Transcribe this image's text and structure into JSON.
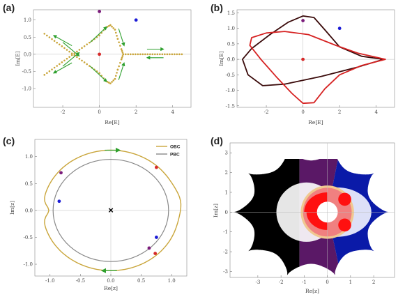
{
  "panels": [
    {
      "id": "a",
      "label": "(a)",
      "xlabel": "Re[E]",
      "ylabel": "Im[E]",
      "xlim": [
        -3.6,
        5.0
      ],
      "ylim": [
        -1.55,
        1.3
      ],
      "xticks": [
        -2,
        0,
        2,
        4
      ],
      "yticks": [
        -1.0,
        -0.5,
        0.0,
        0.5,
        1.0
      ],
      "ytick_labels": [
        "-1.0",
        "-0.5",
        "0.0",
        "0.5",
        "1.0"
      ],
      "points": [
        {
          "x": 0,
          "y": 1.25,
          "color": "#7b1c7b"
        },
        {
          "x": 2,
          "y": 1.0,
          "color": "#1c1cd6"
        },
        {
          "x": 0,
          "y": 0.0,
          "color": "#d62a2a"
        }
      ]
    },
    {
      "id": "b",
      "label": "(b)",
      "xlabel": "Re[E]",
      "ylabel": "Im[E]",
      "xlim": [
        -3.6,
        5.0
      ],
      "ylim": [
        -1.55,
        1.6
      ],
      "xticks": [
        -2,
        0,
        2,
        4
      ],
      "yticks": [
        -1.5,
        -1.0,
        -0.5,
        0.0,
        0.5,
        1.0,
        1.5
      ],
      "ytick_labels": [
        "-1.5",
        "-1.0",
        "-0.5",
        "0.0",
        "0.5",
        "1.0",
        "1.5"
      ],
      "points": [
        {
          "x": 0,
          "y": 1.25,
          "color": "#7b1c7b"
        },
        {
          "x": 2,
          "y": 1.0,
          "color": "#1c1cd6"
        },
        {
          "x": 0,
          "y": 0.0,
          "color": "#d62a2a"
        }
      ]
    },
    {
      "id": "c",
      "label": "(c)",
      "xlabel": "Re[z]",
      "ylabel": "Im[z]",
      "xlim": [
        -1.25,
        1.25
      ],
      "ylim": [
        -1.22,
        1.32
      ],
      "xticks": [
        -1.0,
        -0.5,
        0.0,
        0.5,
        1.0
      ],
      "xtick_labels": [
        "-1.0",
        "-0.5",
        "0.0",
        "0.5",
        "1.0"
      ],
      "yticks": [
        -1.0,
        -0.5,
        0.0,
        0.5,
        1.0
      ],
      "ytick_labels": [
        "-1.0",
        "-0.5",
        "0.0",
        "0.5",
        "1.0"
      ],
      "legend": [
        {
          "label": "OBC",
          "color": "#c9a53a"
        },
        {
          "label": "PBC",
          "color": "#888888"
        }
      ],
      "center_marker": "×",
      "points": [
        {
          "x": -0.82,
          "y": 0.7,
          "color": "#7b1c7b"
        },
        {
          "x": -0.85,
          "y": 0.17,
          "color": "#1c1cd6"
        },
        {
          "x": 0.75,
          "y": 0.8,
          "color": "#d62a2a"
        },
        {
          "x": 0.75,
          "y": -0.5,
          "color": "#1c1cd6"
        },
        {
          "x": 0.63,
          "y": -0.7,
          "color": "#7b1c7b"
        },
        {
          "x": 0.73,
          "y": -0.8,
          "color": "#d62a2a"
        }
      ]
    },
    {
      "id": "d",
      "label": "(d)",
      "xlabel": "Re[z]",
      "ylabel": "Im[z]",
      "xlim": [
        -4.2,
        2.9
      ],
      "ylim": [
        -3.3,
        3.5
      ],
      "xticks": [
        -3,
        -2,
        -1,
        0,
        1,
        2
      ],
      "yticks": [
        -3,
        -2,
        -1,
        0,
        1,
        2,
        3
      ],
      "region_colors": {
        "black": "#000000",
        "purple": "#5a1866",
        "blue": "#0a1aa8",
        "red": "#ff1010",
        "pink": "#f08080",
        "rim": "#f0c890"
      }
    }
  ],
  "chart_data": [
    {
      "panel": "a",
      "type": "scatter",
      "xlabel": "Re[E]",
      "ylabel": "Im[E]",
      "xlim": [
        -3.6,
        5.0
      ],
      "ylim": [
        -1.55,
        1.3
      ],
      "series": [
        {
          "name": "",
          "color": "#c9a53a",
          "description_points": [
            [
              -3.0,
              0.6
            ],
            [
              -1.5,
              0.0
            ],
            [
              -3.0,
              -0.6
            ],
            [
              0.6,
              0.8
            ],
            [
              1.0,
              0.45
            ],
            [
              1.3,
              0.0
            ],
            [
              1.0,
              -0.45
            ],
            [
              0.6,
              -0.8
            ],
            [
              4.5,
              0.0
            ]
          ]
        }
      ],
      "points": [
        {
          "x": 0,
          "y": 1.25
        },
        {
          "x": 2,
          "y": 1.0
        },
        {
          "x": 0,
          "y": 0.0
        }
      ]
    },
    {
      "panel": "b",
      "type": "line",
      "xlabel": "Re[E]",
      "ylabel": "Im[E]",
      "xlim": [
        -3.6,
        5.0
      ],
      "ylim": [
        -1.55,
        1.6
      ],
      "series": [
        {
          "name": "",
          "color": "#d62222"
        },
        {
          "name": "",
          "color": "#3a0a0a"
        }
      ],
      "points": [
        {
          "x": 0,
          "y": 1.25
        },
        {
          "x": 2,
          "y": 1.0
        },
        {
          "x": 0,
          "y": 0.0
        }
      ]
    },
    {
      "panel": "c",
      "type": "line",
      "xlabel": "Re[z]",
      "ylabel": "Im[z]",
      "xlim": [
        -1.25,
        1.25
      ],
      "ylim": [
        -1.22,
        1.32
      ],
      "series": [
        {
          "name": "OBC",
          "color": "#c9a53a"
        },
        {
          "name": "PBC",
          "color": "#888888",
          "radius": 0.95
        }
      ],
      "points": [
        {
          "x": -0.82,
          "y": 0.7
        },
        {
          "x": -0.85,
          "y": 0.17
        },
        {
          "x": 0.75,
          "y": 0.8
        },
        {
          "x": 0.75,
          "y": -0.5
        },
        {
          "x": 0.63,
          "y": -0.7
        },
        {
          "x": 0.73,
          "y": -0.8
        }
      ]
    },
    {
      "panel": "d",
      "type": "heatmap",
      "xlabel": "Re[z]",
      "ylabel": "Im[z]",
      "xlim": [
        -4.2,
        2.9
      ],
      "ylim": [
        -3.3,
        3.5
      ]
    }
  ]
}
